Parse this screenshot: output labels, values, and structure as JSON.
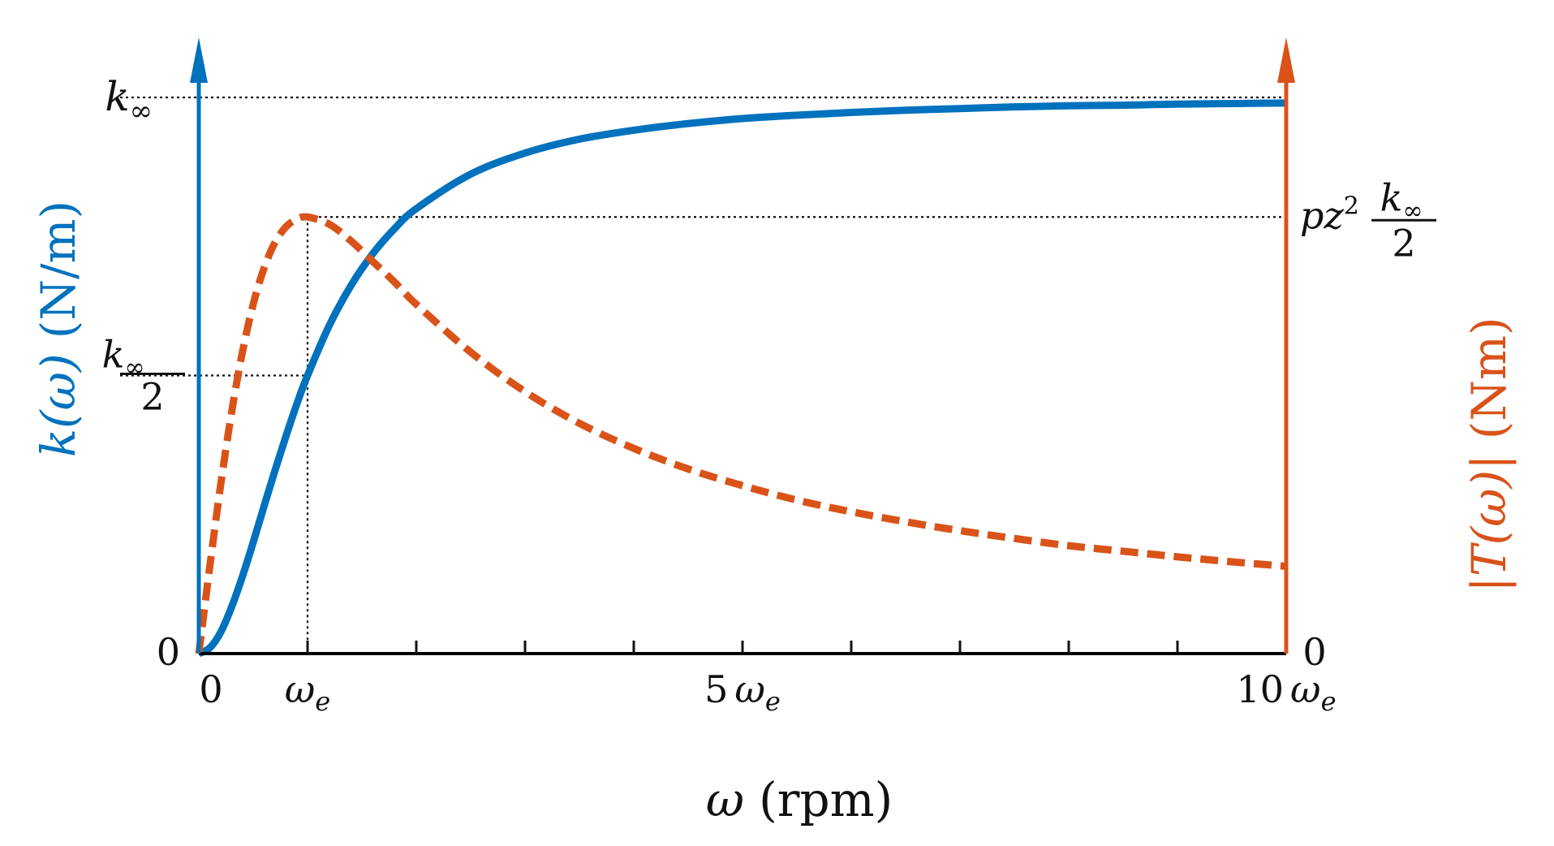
{
  "chart_data": {
    "type": "line",
    "xlabel": {
      "symbol": "ω",
      "unit": "(rpm)"
    },
    "ylabel_left": {
      "prefix": "k",
      "arg": "(ω)",
      "unit": "(N/m)"
    },
    "ylabel_right": {
      "prefix": "|T(ω)|",
      "unit": "(Nm)"
    },
    "xlim": [
      0,
      10
    ],
    "ylim_left": [
      0,
      1
    ],
    "ylim_right": [
      0,
      1
    ],
    "x_ticks": [
      0,
      1,
      2,
      3,
      4,
      5,
      6,
      7,
      8,
      9,
      10
    ],
    "x_tick_labels": [
      {
        "x": 0,
        "num": "0",
        "sym": ""
      },
      {
        "x": 1,
        "num": "",
        "sym": "ω",
        "sub": "e"
      },
      {
        "x": 5,
        "num": "5",
        "sym": "ω",
        "sub": "e"
      },
      {
        "x": 10,
        "num": "10",
        "sym": "ω",
        "sub": "e"
      }
    ],
    "left_tick_labels": {
      "zero": "0",
      "k_inf": {
        "base": "k",
        "sub": "∞"
      },
      "k_inf_half": {
        "num_base": "k",
        "num_sub": "∞",
        "den": "2"
      }
    },
    "right_tick_labels": {
      "zero": "0",
      "peak": {
        "prefix": "pz",
        "sup": "2",
        "num_base": "k",
        "num_sub": "∞",
        "den": "2"
      }
    },
    "reference_lines": [
      {
        "kind": "horizontal",
        "y": 1.0,
        "axis": "left"
      },
      {
        "kind": "horizontal",
        "y": 0.5,
        "axis": "left"
      },
      {
        "kind": "horizontal",
        "y": 0.785,
        "axis": "right"
      },
      {
        "kind": "vertical",
        "x": 1.0
      }
    ],
    "series": [
      {
        "style": "solid",
        "color": "#0072BD",
        "axis": "left",
        "x": [
          0,
          0.1,
          0.2,
          0.3,
          0.4,
          0.5,
          0.6,
          0.7,
          0.8,
          0.9,
          1.0,
          1.2,
          1.4,
          1.6,
          1.8,
          2.0,
          2.5,
          3.0,
          3.5,
          4.0,
          4.5,
          5.0,
          5.5,
          6.0,
          6.5,
          7.0,
          7.5,
          8.0,
          8.5,
          9.0,
          9.5,
          10.0
        ],
        "values": [
          0.0,
          0.01,
          0.038,
          0.083,
          0.138,
          0.2,
          0.265,
          0.329,
          0.39,
          0.448,
          0.5,
          0.59,
          0.662,
          0.719,
          0.764,
          0.8,
          0.862,
          0.9,
          0.925,
          0.941,
          0.953,
          0.962,
          0.968,
          0.973,
          0.977,
          0.98,
          0.983,
          0.985,
          0.986,
          0.988,
          0.989,
          0.99
        ]
      },
      {
        "style": "dashed",
        "color": "#D95319",
        "axis": "right",
        "x": [
          0,
          0.1,
          0.2,
          0.3,
          0.4,
          0.5,
          0.6,
          0.7,
          0.8,
          0.9,
          1.0,
          1.2,
          1.4,
          1.6,
          1.8,
          2.0,
          2.5,
          3.0,
          3.5,
          4.0,
          4.5,
          5.0,
          5.5,
          6.0,
          6.5,
          7.0,
          7.5,
          8.0,
          8.5,
          9.0,
          9.5,
          10.0
        ],
        "values": [
          0.0,
          0.155,
          0.302,
          0.432,
          0.541,
          0.628,
          0.693,
          0.739,
          0.767,
          0.781,
          0.785,
          0.772,
          0.742,
          0.705,
          0.668,
          0.628,
          0.542,
          0.471,
          0.414,
          0.369,
          0.332,
          0.302,
          0.276,
          0.255,
          0.237,
          0.221,
          0.207,
          0.194,
          0.184,
          0.174,
          0.165,
          0.157
        ]
      }
    ],
    "colors": {
      "left_axis": "#0072BD",
      "right_axis": "#D95319",
      "baseline": "#000000"
    },
    "grid": false,
    "legend": "none"
  }
}
